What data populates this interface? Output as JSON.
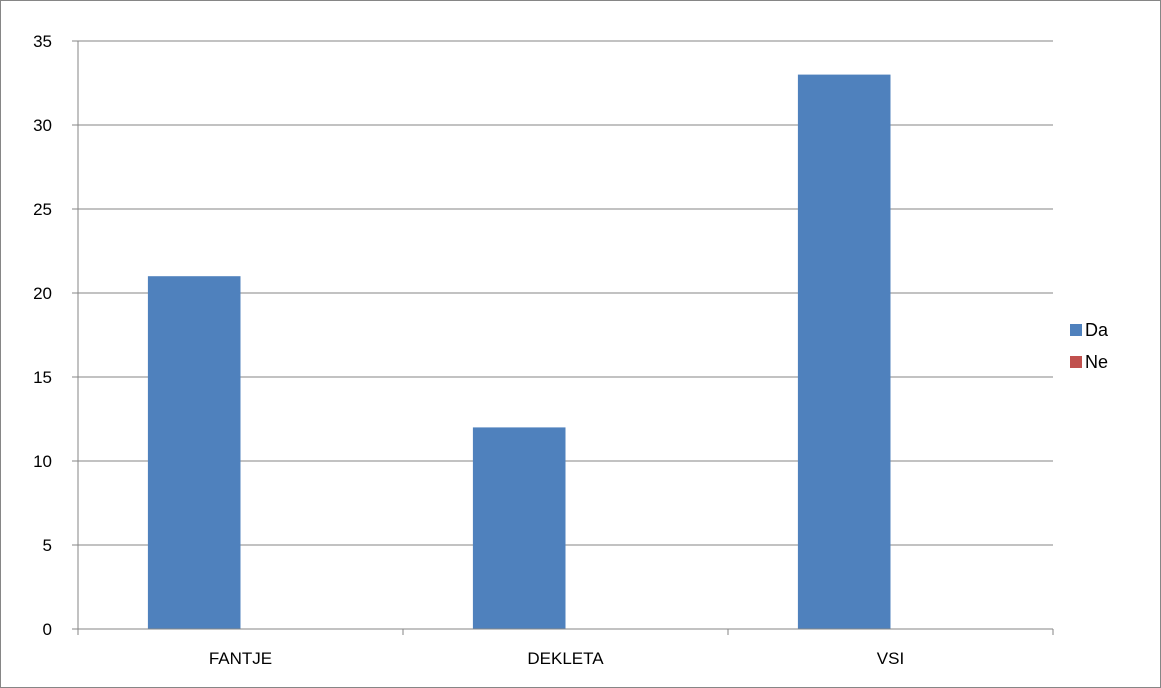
{
  "chart_data": {
    "type": "bar",
    "categories": [
      "FANTJE",
      "DEKLETA",
      "VSI"
    ],
    "series": [
      {
        "name": "Da",
        "values": [
          21,
          12,
          33
        ],
        "color": "#4F81BD"
      },
      {
        "name": "Ne",
        "values": [
          0,
          0,
          0
        ],
        "color": "#C0504D"
      }
    ],
    "title": "",
    "xlabel": "",
    "ylabel": "",
    "ylim": [
      0,
      35
    ],
    "yticks": [
      "0",
      "5",
      "10",
      "15",
      "20",
      "25",
      "30",
      "35"
    ],
    "grid": true,
    "legend_position": "right",
    "gridline_color": "#868686"
  }
}
